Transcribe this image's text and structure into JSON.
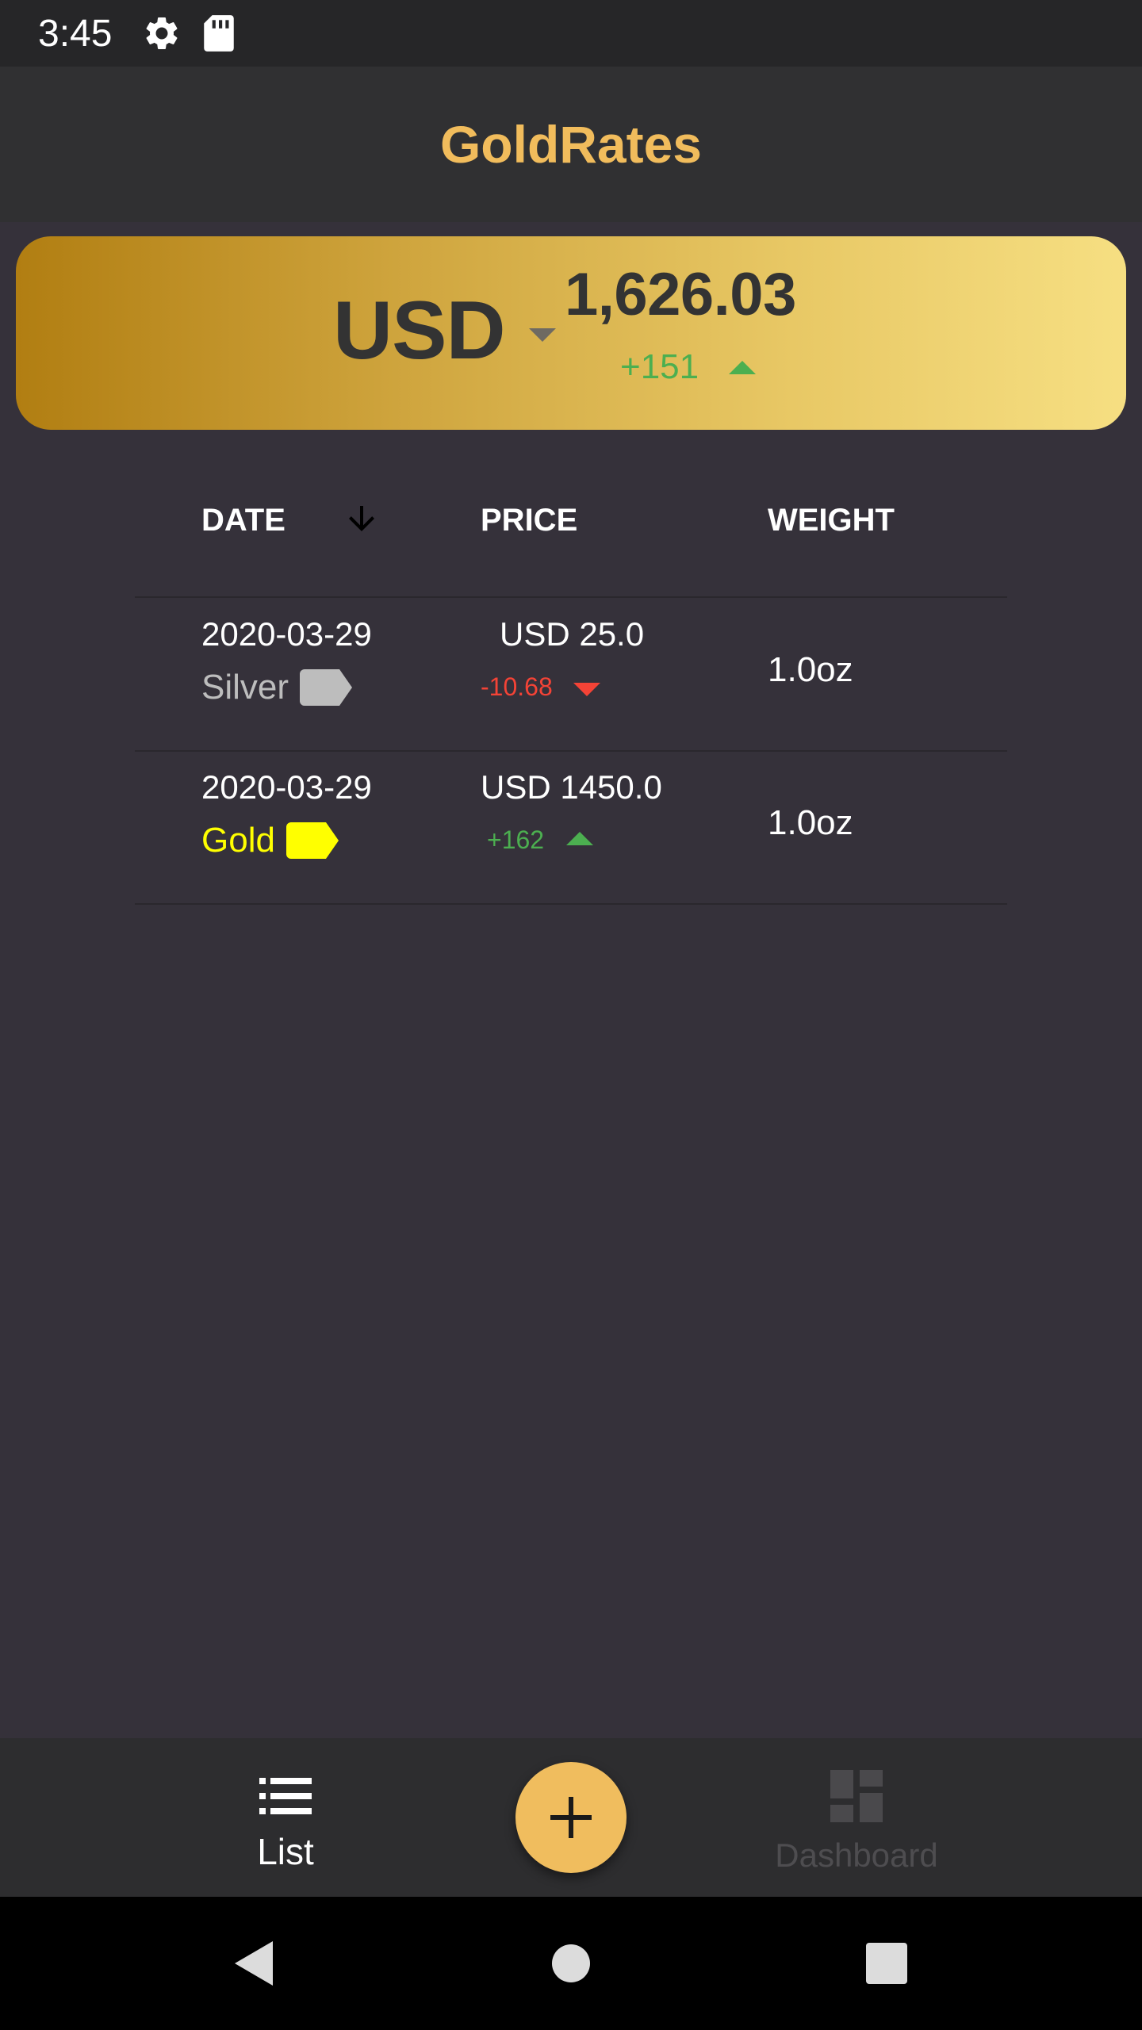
{
  "status_bar": {
    "time": "3:45",
    "icons": [
      "gear-icon",
      "sd-card-icon"
    ]
  },
  "app_bar": {
    "title": "GoldRates",
    "title_color": "#f1bc5c"
  },
  "rate_card": {
    "currency": "USD",
    "rate": "1,626.03",
    "change": "+151",
    "change_direction": "up",
    "gradient": [
      "#b17e12",
      "#f6df82"
    ]
  },
  "table": {
    "headers": {
      "date": "DATE",
      "price": "PRICE",
      "weight": "WEIGHT"
    },
    "sort": {
      "column": "date",
      "direction": "descending",
      "icon": "arrow-down-icon"
    },
    "rows": [
      {
        "date": "2020-03-29",
        "metal": "Silver",
        "metal_color": "#bdbdbd",
        "price": "USD 25.0",
        "change": "-10.68",
        "change_direction": "down",
        "change_color": "#f44336",
        "weight": "1.0oz"
      },
      {
        "date": "2020-03-29",
        "metal": "Gold",
        "metal_color": "#ffff00",
        "price": "USD 1450.0",
        "change": "+162",
        "change_direction": "up",
        "change_color": "#4caf50",
        "weight": "1.0oz"
      }
    ]
  },
  "bottom_nav": {
    "items": [
      {
        "label": "List",
        "icon": "list-icon",
        "active": true
      },
      {
        "label": "Dashboard",
        "icon": "dashboard-icon",
        "active": false
      }
    ],
    "fab_icon": "plus-icon"
  },
  "system_nav": {
    "icons": [
      "back-icon",
      "home-icon",
      "recents-icon"
    ]
  }
}
